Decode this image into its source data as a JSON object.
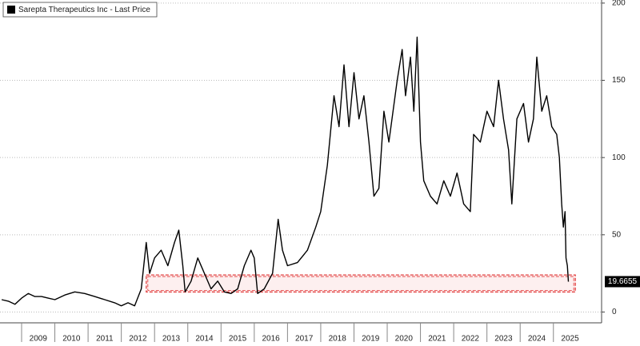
{
  "chart_data": {
    "type": "line",
    "legend_label": "Sarepta Therapeutics Inc - Last Price",
    "x": [
      2008.4,
      2008.6,
      2008.8,
      2009.0,
      2009.2,
      2009.4,
      2009.6,
      2009.8,
      2010.0,
      2010.3,
      2010.6,
      2010.9,
      2011.2,
      2011.5,
      2011.8,
      2012.0,
      2012.2,
      2012.4,
      2012.6,
      2012.75,
      2012.85,
      2013.0,
      2013.2,
      2013.4,
      2013.6,
      2013.73,
      2013.85,
      2013.92,
      2014.1,
      2014.3,
      2014.5,
      2014.7,
      2014.9,
      2015.1,
      2015.3,
      2015.5,
      2015.7,
      2015.9,
      2016.0,
      2016.1,
      2016.3,
      2016.55,
      2016.72,
      2016.85,
      2017.0,
      2017.3,
      2017.6,
      2017.85,
      2018.0,
      2018.2,
      2018.4,
      2018.55,
      2018.7,
      2018.85,
      2019.0,
      2019.15,
      2019.3,
      2019.45,
      2019.6,
      2019.75,
      2019.9,
      2020.05,
      2020.3,
      2020.45,
      2020.55,
      2020.7,
      2020.8,
      2020.9,
      2021.0,
      2021.1,
      2021.3,
      2021.5,
      2021.7,
      2021.9,
      2022.1,
      2022.3,
      2022.5,
      2022.6,
      2022.8,
      2023.0,
      2023.2,
      2023.35,
      2023.5,
      2023.65,
      2023.75,
      2023.9,
      2024.1,
      2024.25,
      2024.4,
      2024.5,
      2024.65,
      2024.8,
      2024.95,
      2025.1,
      2025.18,
      2025.25,
      2025.3,
      2025.35,
      2025.38,
      2025.42,
      2025.45
    ],
    "series": [
      {
        "name": "Sarepta Therapeutics Inc - Last Price",
        "color": "#000000",
        "values": [
          8,
          7,
          5,
          9,
          12,
          10,
          10,
          9,
          8,
          11,
          13,
          12,
          10,
          8,
          6,
          4,
          6,
          4,
          15,
          45,
          25,
          35,
          40,
          30,
          45,
          53,
          30,
          13,
          20,
          35,
          25,
          15,
          20,
          13,
          12,
          15,
          30,
          40,
          35,
          12,
          15,
          25,
          60,
          40,
          30,
          32,
          40,
          55,
          65,
          95,
          140,
          120,
          160,
          120,
          155,
          125,
          140,
          110,
          75,
          80,
          130,
          110,
          150,
          170,
          140,
          165,
          130,
          178,
          110,
          85,
          75,
          70,
          85,
          75,
          90,
          70,
          65,
          115,
          110,
          130,
          120,
          150,
          125,
          105,
          70,
          125,
          135,
          110,
          125,
          165,
          130,
          140,
          120,
          115,
          100,
          70,
          55,
          65,
          35,
          30,
          19.6655
        ]
      }
    ],
    "xlim": [
      2008.35,
      2026.45
    ],
    "xticks": [
      2009,
      2010,
      2011,
      2012,
      2013,
      2014,
      2015,
      2016,
      2017,
      2018,
      2019,
      2020,
      2021,
      2022,
      2023,
      2024,
      2025
    ],
    "ylim": [
      -7,
      202
    ],
    "yticks": [
      0,
      50,
      100,
      150,
      200
    ],
    "grid": true,
    "legend": "top-left",
    "highlight": {
      "xlim": [
        2012.75,
        2025.66
      ],
      "ylim": [
        13,
        24
      ],
      "color": "#e03030"
    }
  }
}
